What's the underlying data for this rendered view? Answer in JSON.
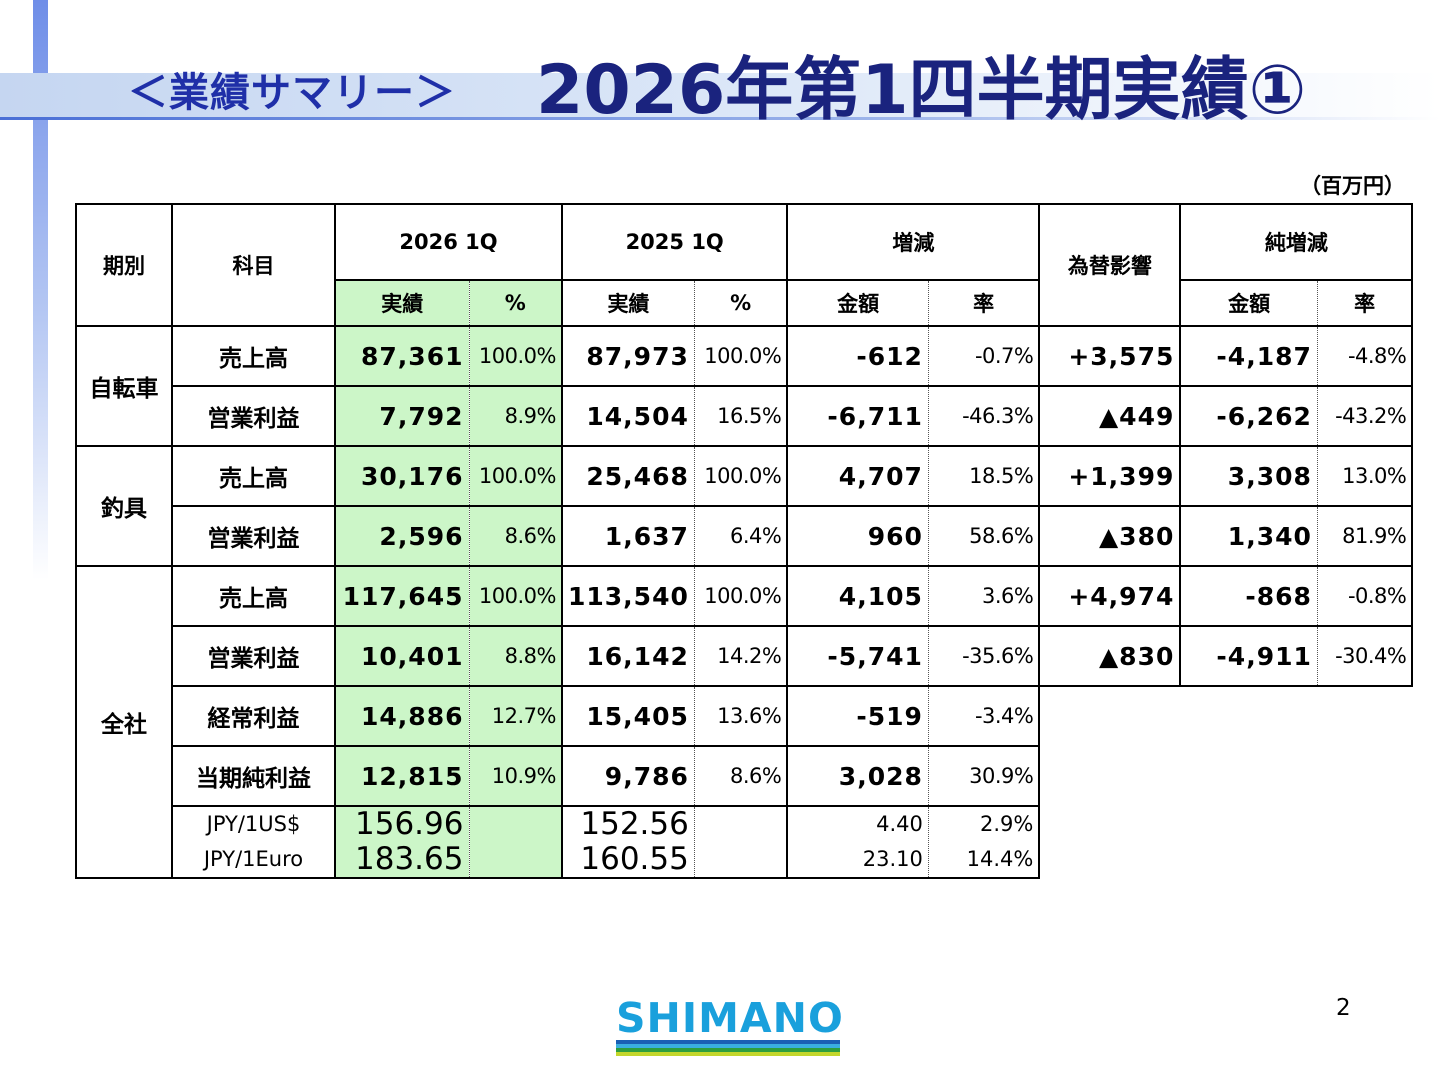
{
  "title": {
    "section": "＜業績サマリー＞",
    "main": "2026年第1四半期実績①"
  },
  "unit": "（百万円）",
  "headers": {
    "period": "期別",
    "item": "科目",
    "cur_year": "2026 1Q",
    "prev_year": "2025 1Q",
    "change": "増減",
    "fx_impact": "為替影響",
    "net_change": "純増減",
    "actual": "実績",
    "percent": "%",
    "amount": "金額",
    "rate": "率"
  },
  "rows": [
    {
      "segment": "自転車",
      "item": "売上高",
      "cur": "87,361",
      "cur_pct": "100.0%",
      "prev": "87,973",
      "prev_pct": "100.0%",
      "chg": "-612",
      "chg_rate": "-0.7%",
      "fx": "+3,575",
      "net": "-4,187",
      "net_rate": "-4.8%"
    },
    {
      "segment": "",
      "item": "営業利益",
      "cur": "7,792",
      "cur_pct": "8.9%",
      "prev": "14,504",
      "prev_pct": "16.5%",
      "chg": "-6,711",
      "chg_rate": "-46.3%",
      "fx": "▲449",
      "net": "-6,262",
      "net_rate": "-43.2%"
    },
    {
      "segment": "釣具",
      "item": "売上高",
      "cur": "30,176",
      "cur_pct": "100.0%",
      "prev": "25,468",
      "prev_pct": "100.0%",
      "chg": "4,707",
      "chg_rate": "18.5%",
      "fx": "+1,399",
      "net": "3,308",
      "net_rate": "13.0%"
    },
    {
      "segment": "",
      "item": "営業利益",
      "cur": "2,596",
      "cur_pct": "8.6%",
      "prev": "1,637",
      "prev_pct": "6.4%",
      "chg": "960",
      "chg_rate": "58.6%",
      "fx": "▲380",
      "net": "1,340",
      "net_rate": "81.9%"
    },
    {
      "segment": "全社",
      "item": "売上高",
      "cur": "117,645",
      "cur_pct": "100.0%",
      "prev": "113,540",
      "prev_pct": "100.0%",
      "chg": "4,105",
      "chg_rate": "3.6%",
      "fx": "+4,974",
      "net": "-868",
      "net_rate": "-0.8%"
    },
    {
      "segment": "",
      "item": "営業利益",
      "cur": "10,401",
      "cur_pct": "8.8%",
      "prev": "16,142",
      "prev_pct": "14.2%",
      "chg": "-5,741",
      "chg_rate": "-35.6%",
      "fx": "▲830",
      "net": "-4,911",
      "net_rate": "-30.4%"
    },
    {
      "segment": "",
      "item": "経常利益",
      "cur": "14,886",
      "cur_pct": "12.7%",
      "prev": "15,405",
      "prev_pct": "13.6%",
      "chg": "-519",
      "chg_rate": "-3.4%"
    },
    {
      "segment": "",
      "item": "当期純利益",
      "cur": "12,815",
      "cur_pct": "10.9%",
      "prev": "9,786",
      "prev_pct": "8.6%",
      "chg": "3,028",
      "chg_rate": "30.9%"
    }
  ],
  "fx_rates": [
    {
      "label": "JPY/1US$",
      "cur": "156.96",
      "prev": "152.56",
      "chg": "4.40",
      "chg_rate": "2.9%"
    },
    {
      "label": "JPY/1Euro",
      "cur": "183.65",
      "prev": "160.55",
      "chg": "23.10",
      "chg_rate": "14.4%"
    }
  ],
  "logo": {
    "text": "SHIMANO",
    "stripe_colors": [
      "#1a5fb4",
      "#3aaee0",
      "#2e9e3e",
      "#c3d62b"
    ]
  },
  "page_number": "2"
}
